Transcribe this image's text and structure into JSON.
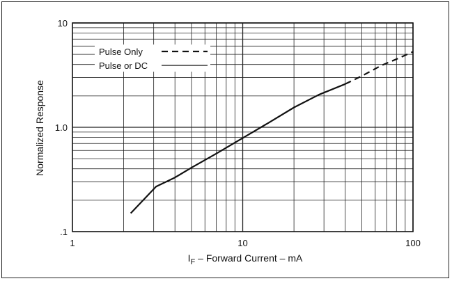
{
  "chart_data": {
    "type": "line",
    "xscale": "log",
    "yscale": "log",
    "xlim": [
      1,
      100
    ],
    "ylim": [
      0.1,
      10
    ],
    "grid": true,
    "legend_position": "top-left",
    "xlabel_main": "I",
    "xlabel_sub": "F",
    "xlabel_rest": " – Forward Current – mA",
    "ylabel": "Normalized Response",
    "x_ticks": [
      {
        "value": 1,
        "label": "1"
      },
      {
        "value": 10,
        "label": "10"
      },
      {
        "value": 100,
        "label": "100"
      }
    ],
    "y_ticks": [
      {
        "value": 0.1,
        "label": ".1"
      },
      {
        "value": 1,
        "label": "1.0"
      },
      {
        "value": 10,
        "label": "10"
      }
    ],
    "legend": [
      {
        "label": "Pulse Only",
        "style": "dashed"
      },
      {
        "label": "Pulse or DC",
        "style": "solid"
      }
    ],
    "series": [
      {
        "name": "Pulse or DC",
        "style": "solid",
        "x": [
          2.2,
          3.1,
          4,
          5,
          7,
          10,
          14,
          20,
          28,
          40
        ],
        "y": [
          0.15,
          0.27,
          0.33,
          0.41,
          0.56,
          0.79,
          1.09,
          1.55,
          2.05,
          2.6
        ]
      },
      {
        "name": "Pulse Only",
        "style": "dashed",
        "x": [
          40,
          50,
          65,
          80,
          100
        ],
        "y": [
          2.6,
          3.1,
          3.9,
          4.5,
          5.3
        ]
      }
    ]
  }
}
